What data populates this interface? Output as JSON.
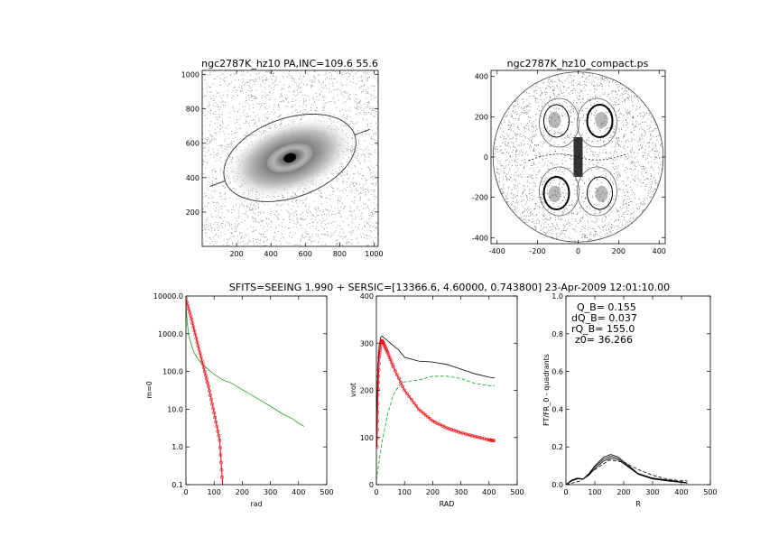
{
  "header": "SFITS=SEEING 1.990 + SERSIC=[13366.6, 4.60000, 0.743800]  23-Apr-2009 12:01:10.00",
  "colors": {
    "green": "#1aa11a",
    "red": "#e8141e",
    "black": "#000000",
    "gray": "#6f6f6f"
  },
  "chart_data": [
    {
      "type": "heatmap",
      "title": "ngc2787K_hz10 PA,INC=109.6 55.6",
      "xlim": [
        0,
        1024
      ],
      "ylim": [
        0,
        1024
      ],
      "xticks": [
        200,
        400,
        600,
        800,
        1000
      ],
      "yticks": [
        200,
        400,
        600,
        800,
        1000
      ],
      "galaxy_center": [
        510,
        515
      ],
      "ellipse_semi_axes": [
        400,
        230
      ],
      "ellipse_angle_deg": 19.6
    },
    {
      "type": "heatmap",
      "title": "ngc2787K_hz10_compact.ps",
      "xlim": [
        -430,
        430
      ],
      "ylim": [
        -430,
        430
      ],
      "xticks": [
        -400,
        -200,
        0,
        200,
        400
      ],
      "yticks": [
        -400,
        -200,
        0,
        200,
        400
      ],
      "boundary_radius": 420
    },
    {
      "type": "line",
      "xlabel": "rad",
      "ylabel": "m=0",
      "xlim": [
        0,
        500
      ],
      "ylim": [
        0.1,
        10000
      ],
      "yscale": "log",
      "xticks": [
        0,
        100,
        200,
        300,
        400,
        500
      ],
      "yticks": [
        "10000.0",
        "1000.0",
        "100.0",
        "10.0",
        "1.0",
        "0.1"
      ],
      "series": [
        {
          "color": "green",
          "x": [
            0,
            5,
            10,
            20,
            30,
            50,
            75,
            100,
            130,
            160,
            200,
            250,
            300,
            350,
            380,
            400,
            420
          ],
          "y": [
            6000,
            1800,
            900,
            500,
            300,
            180,
            120,
            85,
            60,
            50,
            33,
            20,
            12,
            7,
            5.5,
            4.2,
            3.5
          ]
        },
        {
          "color": "red",
          "marker": "circle",
          "x": [
            0,
            20,
            40,
            60,
            80,
            100,
            120,
            130
          ],
          "y": [
            8500,
            2400,
            600,
            160,
            40,
            8,
            1.5,
            0.1
          ]
        }
      ]
    },
    {
      "type": "line",
      "xlabel": "RAD",
      "ylabel": "vrot",
      "xlim": [
        0,
        500
      ],
      "ylim": [
        0,
        400
      ],
      "xticks": [
        0,
        100,
        200,
        300,
        400,
        500
      ],
      "yticks": [
        0,
        100,
        200,
        300,
        400
      ],
      "series": [
        {
          "color": "black",
          "x": [
            0,
            5,
            10,
            15,
            20,
            30,
            50,
            80,
            100,
            150,
            200,
            250,
            300,
            350,
            400,
            420
          ],
          "y": [
            120,
            250,
            295,
            312,
            315,
            310,
            300,
            285,
            270,
            262,
            260,
            255,
            245,
            235,
            228,
            226
          ]
        },
        {
          "color": "green",
          "dash": true,
          "x": [
            0,
            10,
            20,
            40,
            60,
            80,
            100,
            150,
            200,
            250,
            300,
            350,
            400,
            420
          ],
          "y": [
            10,
            50,
            90,
            150,
            190,
            210,
            218,
            222,
            230,
            230,
            225,
            215,
            210,
            210
          ]
        },
        {
          "color": "red",
          "marker": "circle",
          "x": [
            2,
            5,
            10,
            15,
            20,
            25,
            40,
            60,
            100,
            150,
            200,
            250,
            300,
            350,
            400,
            420
          ],
          "y": [
            80,
            190,
            270,
            300,
            305,
            300,
            280,
            250,
            200,
            160,
            135,
            120,
            110,
            102,
            95,
            93
          ]
        }
      ]
    },
    {
      "type": "line",
      "xlabel": "R",
      "ylabel": "FT/FR_0 - quadrants",
      "xlim": [
        0,
        500
      ],
      "ylim": [
        0,
        1
      ],
      "xticks": [
        0,
        100,
        200,
        300,
        400,
        500
      ],
      "yticks": [
        "0.0",
        "0.2",
        "0.4",
        "0.6",
        "0.8",
        "1.0"
      ],
      "annotations": [
        "Q_B=  0.155",
        "dQ_B=  0.037",
        "rQ_B=  155.0",
        "z0= 36.266"
      ],
      "series": [
        {
          "color": "black",
          "x": [
            0,
            20,
            40,
            60,
            80,
            100,
            130,
            155,
            180,
            210,
            250,
            300,
            350,
            400,
            420
          ],
          "y": [
            0,
            0.025,
            0.035,
            0.03,
            0.06,
            0.1,
            0.145,
            0.16,
            0.148,
            0.11,
            0.06,
            0.035,
            0.025,
            0.015,
            0.01
          ]
        },
        {
          "color": "black",
          "x": [
            0,
            20,
            40,
            60,
            80,
            100,
            130,
            155,
            180,
            210,
            250,
            300,
            350,
            400,
            420
          ],
          "y": [
            0,
            0.02,
            0.03,
            0.03,
            0.05,
            0.085,
            0.125,
            0.14,
            0.132,
            0.1,
            0.055,
            0.03,
            0.02,
            0.012,
            0.008
          ]
        },
        {
          "color": "black",
          "x": [
            0,
            20,
            40,
            60,
            80,
            100,
            130,
            155,
            180,
            210,
            250,
            300,
            350,
            400,
            420
          ],
          "y": [
            0,
            0.022,
            0.032,
            0.03,
            0.055,
            0.095,
            0.135,
            0.15,
            0.14,
            0.105,
            0.058,
            0.033,
            0.022,
            0.013,
            0.009
          ]
        },
        {
          "color": "black",
          "dash": true,
          "x": [
            0,
            50,
            100,
            150,
            200,
            250,
            300,
            350,
            400,
            420
          ],
          "y": [
            0,
            0.02,
            0.08,
            0.13,
            0.12,
            0.08,
            0.05,
            0.03,
            0.02,
            0.02
          ]
        }
      ]
    }
  ]
}
